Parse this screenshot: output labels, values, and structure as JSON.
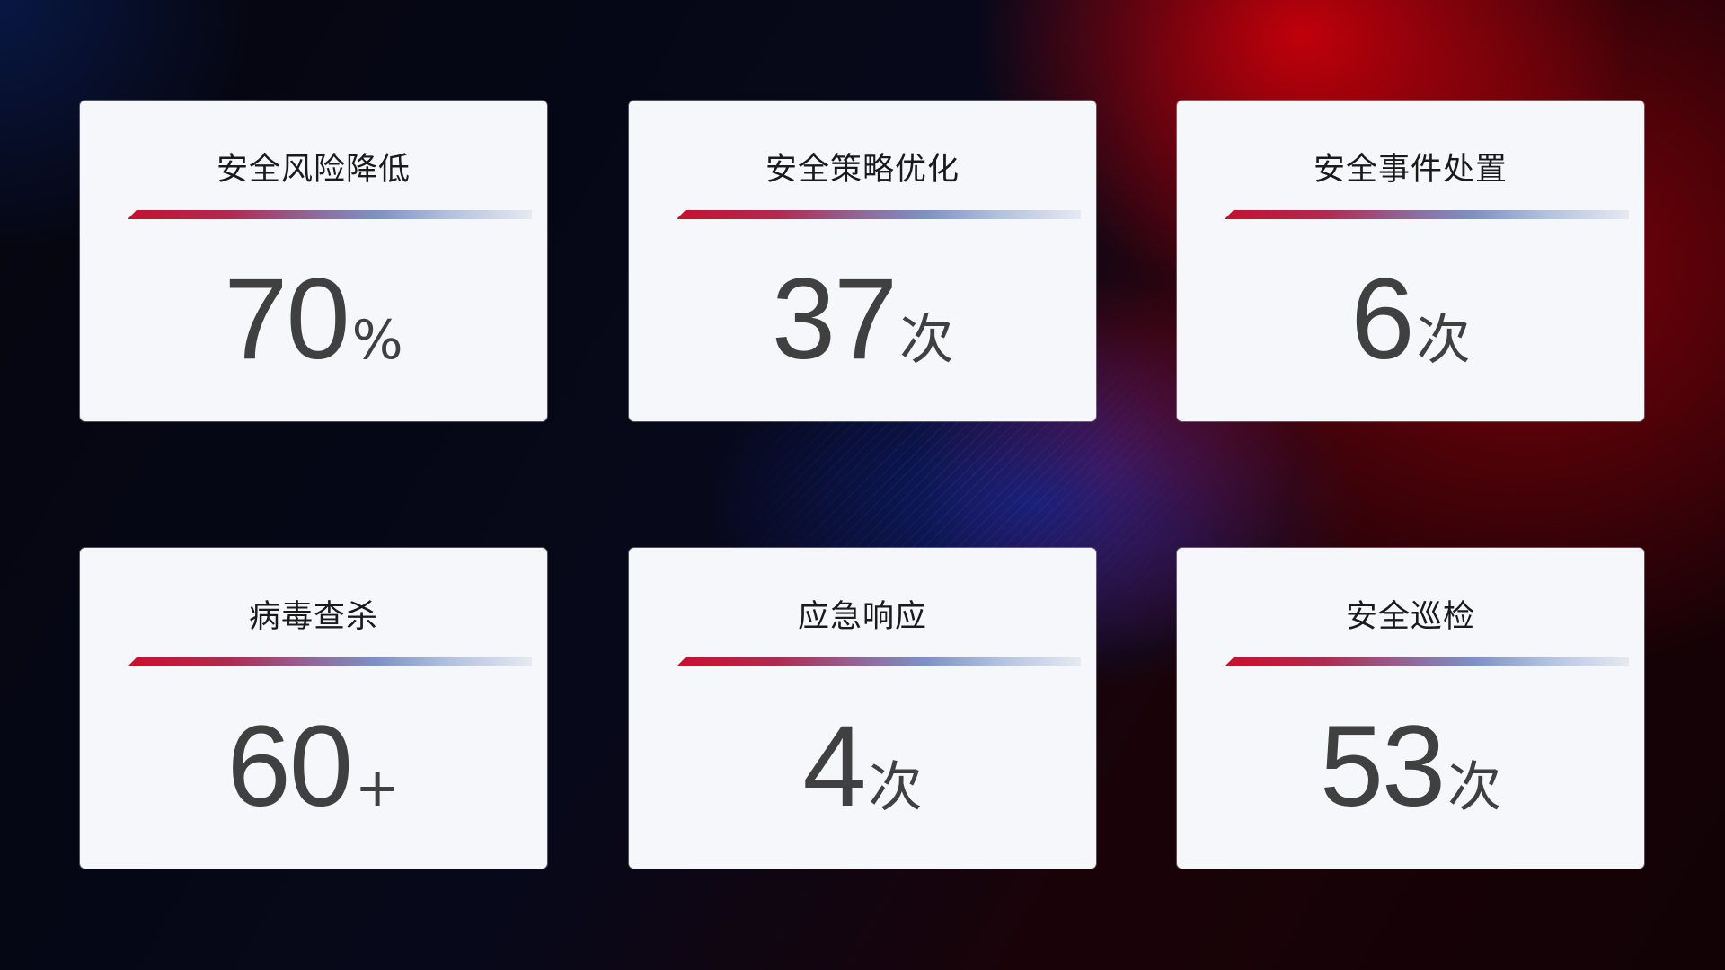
{
  "cards": [
    {
      "title": "安全风险降低",
      "value": "70",
      "unit": "%"
    },
    {
      "title": "安全策略优化",
      "value": "37",
      "unit": "次"
    },
    {
      "title": "安全事件处置",
      "value": "6",
      "unit": "次"
    },
    {
      "title": "病毒查杀",
      "value": "60",
      "unit": "+"
    },
    {
      "title": "应急响应",
      "value": "4",
      "unit": "次"
    },
    {
      "title": "安全巡检",
      "value": "53",
      "unit": "次"
    }
  ],
  "colors": {
    "accent_red": "#c8102e",
    "accent_blue": "#7e92c4",
    "card_bg": "#f5f7fb",
    "value_text": "#404040"
  }
}
